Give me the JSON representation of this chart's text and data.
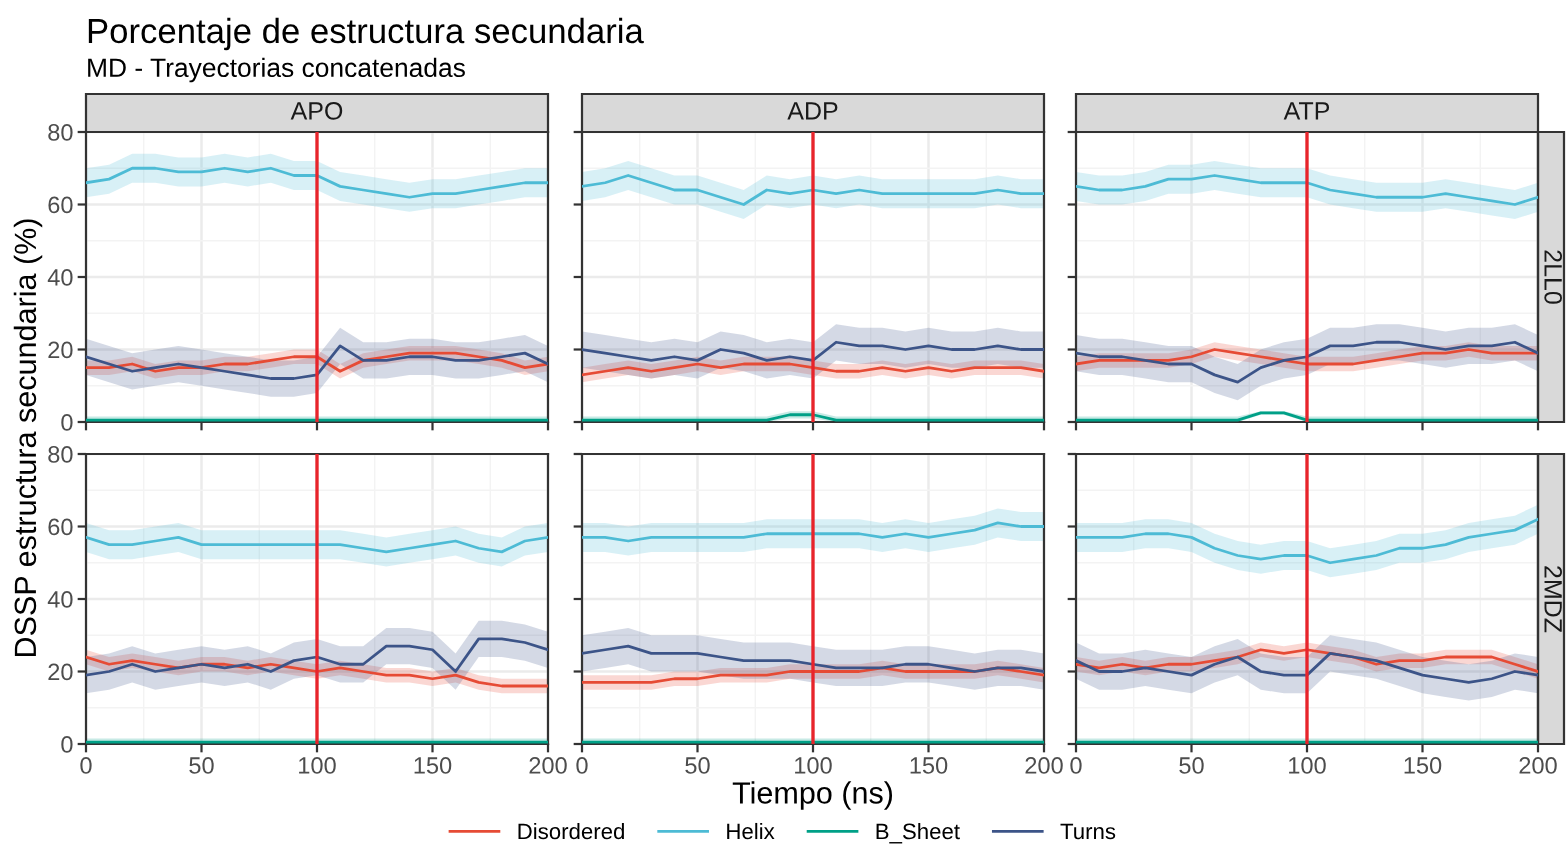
{
  "chart_data": [
    {
      "type": "line",
      "title": "Porcentaje de estructura secundaria",
      "subtitle": "MD - Trayectorias concatenadas",
      "x2label": "APO",
      "ylabel": "DSSP estructura secundaria (%)",
      "legend": "bottom",
      "xlim": [
        0,
        200
      ],
      "ylim": [
        0,
        80
      ],
      "xticks": [
        0,
        50,
        100,
        150,
        200
      ],
      "yticks": [
        0,
        20,
        40,
        60,
        80
      ],
      "grid": true,
      "tick_labels": "y",
      "ref_lines": [
        {
          "axis": "x",
          "value": 100,
          "color": "#e8242b"
        }
      ],
      "x": [
        0,
        10,
        20,
        30,
        40,
        50,
        60,
        70,
        80,
        90,
        100,
        110,
        120,
        130,
        140,
        150,
        160,
        170,
        180,
        190,
        200
      ],
      "series": [
        {
          "name": "Disordered",
          "color": "#e64b35",
          "values": [
            15,
            15,
            16,
            14,
            15,
            15,
            16,
            16,
            17,
            18,
            18,
            14,
            17,
            18,
            19,
            19,
            19,
            18,
            17,
            15,
            16
          ],
          "lower": [
            13,
            13,
            14,
            12,
            13,
            13,
            14,
            14,
            15,
            16,
            16,
            12,
            15,
            16,
            17,
            17,
            17,
            16,
            15,
            13,
            14
          ],
          "upper": [
            17,
            17,
            18,
            16,
            17,
            17,
            18,
            18,
            19,
            20,
            20,
            16,
            19,
            20,
            21,
            21,
            21,
            20,
            19,
            17,
            18
          ]
        },
        {
          "name": "Helix",
          "color": "#4dbbd5",
          "values": [
            66,
            67,
            70,
            70,
            69,
            69,
            70,
            69,
            70,
            68,
            68,
            65,
            64,
            63,
            62,
            63,
            63,
            64,
            65,
            66,
            66
          ],
          "lower": [
            62,
            63,
            66,
            66,
            65,
            65,
            66,
            65,
            66,
            64,
            64,
            61,
            60,
            59,
            58,
            59,
            59,
            60,
            61,
            62,
            62
          ],
          "upper": [
            70,
            71,
            74,
            74,
            73,
            73,
            74,
            73,
            74,
            72,
            72,
            69,
            68,
            67,
            66,
            67,
            67,
            68,
            69,
            70,
            70
          ]
        },
        {
          "name": "B_Sheet",
          "color": "#00a087",
          "values": [
            0.5,
            0.5,
            0.5,
            0.5,
            0.5,
            0.5,
            0.5,
            0.5,
            0.5,
            0.5,
            0.5,
            0.5,
            0.5,
            0.5,
            0.5,
            0.5,
            0.5,
            0.5,
            0.5,
            0.5,
            0.5
          ],
          "lower": [
            0,
            0,
            0,
            0,
            0,
            0,
            0,
            0,
            0,
            0,
            0,
            0,
            0,
            0,
            0,
            0,
            0,
            0,
            0,
            0,
            0
          ],
          "upper": [
            1.5,
            1.5,
            1.5,
            1.5,
            1.5,
            1.5,
            1.5,
            1.5,
            1.5,
            1.5,
            1.5,
            1.5,
            1.5,
            1.5,
            1.5,
            1.5,
            1.5,
            1.5,
            1.5,
            1.5,
            1.5
          ]
        },
        {
          "name": "Turns",
          "color": "#3c5488",
          "values": [
            18,
            16,
            14,
            15,
            16,
            15,
            14,
            13,
            12,
            12,
            13,
            21,
            17,
            17,
            18,
            18,
            17,
            17,
            18,
            19,
            16
          ],
          "lower": [
            13,
            11,
            9,
            10,
            11,
            10,
            9,
            8,
            7,
            7,
            8,
            16,
            12,
            12,
            13,
            13,
            12,
            12,
            13,
            14,
            11
          ],
          "upper": [
            23,
            21,
            19,
            20,
            21,
            20,
            19,
            18,
            17,
            17,
            18,
            26,
            22,
            22,
            23,
            23,
            22,
            22,
            23,
            24,
            21
          ]
        }
      ]
    },
    {
      "type": "line",
      "x2label": "ADP",
      "xlim": [
        0,
        200
      ],
      "ylim": [
        0,
        80
      ],
      "xticks": [
        0,
        50,
        100,
        150,
        200
      ],
      "yticks": [
        0,
        20,
        40,
        60,
        80
      ],
      "grid": true,
      "tick_labels": false,
      "ref_lines": [
        {
          "axis": "x",
          "value": 100,
          "color": "#e8242b"
        }
      ],
      "x": [
        0,
        10,
        20,
        30,
        40,
        50,
        60,
        70,
        80,
        90,
        100,
        110,
        120,
        130,
        140,
        150,
        160,
        170,
        180,
        190,
        200
      ],
      "series": [
        {
          "name": "Disordered",
          "color": "#e64b35",
          "values": [
            13,
            14,
            15,
            14,
            15,
            16,
            15,
            16,
            16,
            16,
            15,
            14,
            14,
            15,
            14,
            15,
            14,
            15,
            15,
            15,
            14
          ],
          "lower": [
            11,
            12,
            13,
            12,
            13,
            14,
            13,
            14,
            14,
            14,
            13,
            12,
            12,
            13,
            12,
            13,
            12,
            13,
            13,
            13,
            12
          ],
          "upper": [
            15,
            16,
            17,
            16,
            17,
            18,
            17,
            18,
            18,
            18,
            17,
            16,
            16,
            17,
            16,
            17,
            16,
            17,
            17,
            17,
            16
          ]
        },
        {
          "name": "Helix",
          "color": "#4dbbd5",
          "values": [
            65,
            66,
            68,
            66,
            64,
            64,
            62,
            60,
            64,
            63,
            64,
            63,
            64,
            63,
            63,
            63,
            63,
            63,
            64,
            63,
            63
          ],
          "lower": [
            61,
            62,
            64,
            62,
            60,
            60,
            58,
            56,
            60,
            59,
            60,
            59,
            60,
            59,
            59,
            59,
            59,
            59,
            60,
            59,
            59
          ],
          "upper": [
            69,
            70,
            72,
            70,
            68,
            68,
            66,
            64,
            68,
            67,
            68,
            67,
            68,
            67,
            67,
            67,
            67,
            67,
            68,
            67,
            67
          ]
        },
        {
          "name": "B_Sheet",
          "color": "#00a087",
          "values": [
            0.5,
            0.5,
            0.5,
            0.5,
            0.5,
            0.5,
            0.5,
            0.5,
            0.5,
            2,
            2,
            0.5,
            0.5,
            0.5,
            0.5,
            0.5,
            0.5,
            0.5,
            0.5,
            0.5,
            0.5
          ],
          "lower": [
            0,
            0,
            0,
            0,
            0,
            0,
            0,
            0,
            0,
            1,
            1,
            0,
            0,
            0,
            0,
            0,
            0,
            0,
            0,
            0,
            0
          ],
          "upper": [
            1.5,
            1.5,
            1.5,
            1.5,
            1.5,
            1.5,
            1.5,
            1.5,
            1.5,
            3,
            3,
            1.5,
            1.5,
            1.5,
            1.5,
            1.5,
            1.5,
            1.5,
            1.5,
            1.5,
            1.5
          ]
        },
        {
          "name": "Turns",
          "color": "#3c5488",
          "values": [
            20,
            19,
            18,
            17,
            18,
            17,
            20,
            19,
            17,
            18,
            17,
            22,
            21,
            21,
            20,
            21,
            20,
            20,
            21,
            20,
            20
          ],
          "lower": [
            15,
            14,
            13,
            12,
            13,
            12,
            15,
            14,
            12,
            13,
            12,
            17,
            16,
            16,
            15,
            16,
            15,
            15,
            16,
            15,
            15
          ],
          "upper": [
            25,
            24,
            23,
            22,
            23,
            22,
            25,
            24,
            22,
            23,
            22,
            27,
            26,
            26,
            25,
            26,
            25,
            25,
            26,
            25,
            25
          ]
        }
      ]
    },
    {
      "type": "line",
      "x2label": "ATP",
      "y2label": "2LL0",
      "xlim": [
        0,
        200
      ],
      "ylim": [
        0,
        80
      ],
      "xticks": [
        0,
        50,
        100,
        150,
        200
      ],
      "yticks": [
        0,
        20,
        40,
        60,
        80
      ],
      "grid": true,
      "tick_labels": false,
      "ref_lines": [
        {
          "axis": "x",
          "value": 100,
          "color": "#e8242b"
        }
      ],
      "x": [
        0,
        10,
        20,
        30,
        40,
        50,
        60,
        70,
        80,
        90,
        100,
        110,
        120,
        130,
        140,
        150,
        160,
        170,
        180,
        190,
        200
      ],
      "series": [
        {
          "name": "Disordered",
          "color": "#e64b35",
          "values": [
            16,
            17,
            17,
            17,
            17,
            18,
            20,
            19,
            18,
            17,
            16,
            16,
            16,
            17,
            18,
            19,
            19,
            20,
            19,
            19,
            19
          ],
          "lower": [
            14,
            15,
            15,
            15,
            15,
            16,
            18,
            17,
            16,
            15,
            14,
            14,
            14,
            15,
            16,
            17,
            17,
            18,
            17,
            17,
            17
          ],
          "upper": [
            18,
            19,
            19,
            19,
            19,
            20,
            22,
            21,
            20,
            19,
            18,
            18,
            18,
            19,
            20,
            21,
            21,
            22,
            21,
            21,
            21
          ]
        },
        {
          "name": "Helix",
          "color": "#4dbbd5",
          "values": [
            65,
            64,
            64,
            65,
            67,
            67,
            68,
            67,
            66,
            66,
            66,
            64,
            63,
            62,
            62,
            62,
            63,
            62,
            61,
            60,
            62
          ],
          "lower": [
            61,
            60,
            60,
            61,
            63,
            63,
            64,
            63,
            62,
            62,
            62,
            60,
            59,
            58,
            58,
            58,
            59,
            58,
            57,
            56,
            58
          ],
          "upper": [
            69,
            68,
            68,
            69,
            71,
            71,
            72,
            71,
            70,
            70,
            70,
            68,
            67,
            66,
            66,
            66,
            67,
            66,
            65,
            64,
            66
          ]
        },
        {
          "name": "B_Sheet",
          "color": "#00a087",
          "values": [
            0.5,
            0.5,
            0.5,
            0.5,
            0.5,
            0.5,
            0.5,
            0.5,
            2.5,
            2.5,
            0.5,
            0.5,
            0.5,
            0.5,
            0.5,
            0.5,
            0.5,
            0.5,
            0.5,
            0.5,
            0.5
          ],
          "lower": [
            0,
            0,
            0,
            0,
            0,
            0,
            0,
            0,
            2,
            2,
            0,
            0,
            0,
            0,
            0,
            0,
            0,
            0,
            0,
            0,
            0
          ],
          "upper": [
            1.5,
            1.5,
            1.5,
            1.5,
            1.5,
            1.5,
            1.5,
            1.5,
            3,
            3,
            1.5,
            1.5,
            1.5,
            1.5,
            1.5,
            1.5,
            1.5,
            1.5,
            1.5,
            1.5,
            1.5
          ]
        },
        {
          "name": "Turns",
          "color": "#3c5488",
          "values": [
            19,
            18,
            18,
            17,
            16,
            16,
            13,
            11,
            15,
            17,
            18,
            21,
            21,
            22,
            22,
            21,
            20,
            21,
            21,
            22,
            19
          ],
          "lower": [
            14,
            13,
            13,
            12,
            11,
            11,
            8,
            6,
            10,
            12,
            13,
            16,
            16,
            17,
            17,
            16,
            15,
            16,
            16,
            17,
            14
          ],
          "upper": [
            24,
            23,
            23,
            22,
            21,
            21,
            18,
            16,
            20,
            22,
            23,
            26,
            26,
            27,
            27,
            26,
            25,
            26,
            26,
            27,
            24
          ]
        }
      ]
    },
    {
      "type": "line",
      "xlim": [
        0,
        200
      ],
      "ylim": [
        0,
        80
      ],
      "xticks": [
        0,
        50,
        100,
        150,
        200
      ],
      "yticks": [
        0,
        20,
        40,
        60,
        80
      ],
      "grid": true,
      "ref_lines": [
        {
          "axis": "x",
          "value": 100,
          "color": "#e8242b"
        }
      ],
      "x": [
        0,
        10,
        20,
        30,
        40,
        50,
        60,
        70,
        80,
        90,
        100,
        110,
        120,
        130,
        140,
        150,
        160,
        170,
        180,
        190,
        200
      ],
      "series": [
        {
          "name": "Disordered",
          "color": "#e64b35",
          "values": [
            24,
            22,
            23,
            22,
            21,
            22,
            22,
            21,
            22,
            21,
            20,
            21,
            20,
            19,
            19,
            18,
            19,
            17,
            16,
            16,
            16
          ],
          "lower": [
            22,
            20,
            21,
            20,
            19,
            20,
            20,
            19,
            20,
            19,
            18,
            19,
            18,
            17,
            17,
            16,
            17,
            15,
            14,
            14,
            14
          ],
          "upper": [
            26,
            24,
            25,
            24,
            23,
            24,
            24,
            23,
            24,
            23,
            22,
            23,
            22,
            21,
            21,
            20,
            21,
            19,
            18,
            18,
            18
          ]
        },
        {
          "name": "Helix",
          "color": "#4dbbd5",
          "values": [
            57,
            55,
            55,
            56,
            57,
            55,
            55,
            55,
            55,
            55,
            55,
            55,
            54,
            53,
            54,
            55,
            56,
            54,
            53,
            56,
            57
          ],
          "lower": [
            53,
            51,
            51,
            52,
            53,
            51,
            51,
            51,
            51,
            51,
            51,
            51,
            50,
            49,
            50,
            51,
            52,
            50,
            49,
            52,
            53
          ],
          "upper": [
            61,
            59,
            59,
            60,
            61,
            59,
            59,
            59,
            59,
            59,
            59,
            59,
            58,
            57,
            58,
            59,
            60,
            58,
            57,
            60,
            61
          ]
        },
        {
          "name": "B_Sheet",
          "color": "#00a087",
          "values": [
            0.5,
            0.5,
            0.5,
            0.5,
            0.5,
            0.5,
            0.5,
            0.5,
            0.5,
            0.5,
            0.5,
            0.5,
            0.5,
            0.5,
            0.5,
            0.5,
            0.5,
            0.5,
            0.5,
            0.5,
            0.5
          ],
          "lower": [
            0,
            0,
            0,
            0,
            0,
            0,
            0,
            0,
            0,
            0,
            0,
            0,
            0,
            0,
            0,
            0,
            0,
            0,
            0,
            0,
            0
          ],
          "upper": [
            1.5,
            1.5,
            1.5,
            1.5,
            1.5,
            1.5,
            1.5,
            1.5,
            1.5,
            1.5,
            1.5,
            1.5,
            1.5,
            1.5,
            1.5,
            1.5,
            1.5,
            1.5,
            1.5,
            1.5,
            1.5
          ]
        },
        {
          "name": "Turns",
          "color": "#3c5488",
          "values": [
            19,
            20,
            22,
            20,
            21,
            22,
            21,
            22,
            20,
            23,
            24,
            22,
            22,
            27,
            27,
            26,
            20,
            29,
            29,
            28,
            26
          ],
          "lower": [
            14,
            15,
            17,
            15,
            16,
            17,
            16,
            17,
            15,
            18,
            19,
            17,
            17,
            22,
            22,
            21,
            15,
            24,
            24,
            23,
            21
          ],
          "upper": [
            24,
            25,
            27,
            25,
            26,
            27,
            26,
            27,
            25,
            28,
            29,
            27,
            27,
            32,
            32,
            31,
            25,
            34,
            34,
            33,
            31
          ]
        }
      ]
    },
    {
      "type": "line",
      "xlabel": "Tiempo (ns)",
      "xlim": [
        0,
        200
      ],
      "ylim": [
        0,
        80
      ],
      "xticks": [
        0,
        50,
        100,
        150,
        200
      ],
      "yticks": [
        0,
        20,
        40,
        60,
        80
      ],
      "grid": true,
      "tick_labels": "x",
      "ref_lines": [
        {
          "axis": "x",
          "value": 100,
          "color": "#e8242b"
        }
      ],
      "x": [
        0,
        10,
        20,
        30,
        40,
        50,
        60,
        70,
        80,
        90,
        100,
        110,
        120,
        130,
        140,
        150,
        160,
        170,
        180,
        190,
        200
      ],
      "series": [
        {
          "name": "Disordered",
          "color": "#e64b35",
          "values": [
            17,
            17,
            17,
            17,
            18,
            18,
            19,
            19,
            19,
            20,
            20,
            20,
            20,
            21,
            20,
            20,
            20,
            20,
            21,
            20,
            19
          ],
          "lower": [
            15,
            15,
            15,
            15,
            16,
            16,
            17,
            17,
            17,
            18,
            18,
            18,
            18,
            19,
            18,
            18,
            18,
            18,
            19,
            18,
            17
          ],
          "upper": [
            19,
            19,
            19,
            19,
            20,
            20,
            21,
            21,
            21,
            22,
            22,
            22,
            22,
            23,
            22,
            22,
            22,
            22,
            23,
            22,
            21
          ]
        },
        {
          "name": "Helix",
          "color": "#4dbbd5",
          "values": [
            57,
            57,
            56,
            57,
            57,
            57,
            57,
            57,
            58,
            58,
            58,
            58,
            58,
            57,
            58,
            57,
            58,
            59,
            61,
            60,
            60
          ],
          "lower": [
            53,
            53,
            52,
            53,
            53,
            53,
            53,
            53,
            54,
            54,
            54,
            54,
            54,
            53,
            54,
            53,
            54,
            55,
            57,
            56,
            56
          ],
          "upper": [
            61,
            61,
            60,
            61,
            61,
            61,
            61,
            61,
            62,
            62,
            62,
            62,
            62,
            61,
            62,
            61,
            62,
            63,
            65,
            64,
            64
          ]
        },
        {
          "name": "B_Sheet",
          "color": "#00a087",
          "values": [
            0.5,
            0.5,
            0.5,
            0.5,
            0.5,
            0.5,
            0.5,
            0.5,
            0.5,
            0.5,
            0.5,
            0.5,
            0.5,
            0.5,
            0.5,
            0.5,
            0.5,
            0.5,
            0.5,
            0.5,
            0.5
          ],
          "lower": [
            0,
            0,
            0,
            0,
            0,
            0,
            0,
            0,
            0,
            0,
            0,
            0,
            0,
            0,
            0,
            0,
            0,
            0,
            0,
            0,
            0
          ],
          "upper": [
            1.5,
            1.5,
            1.5,
            1.5,
            1.5,
            1.5,
            1.5,
            1.5,
            1.5,
            1.5,
            1.5,
            1.5,
            1.5,
            1.5,
            1.5,
            1.5,
            1.5,
            1.5,
            1.5,
            1.5,
            1.5
          ]
        },
        {
          "name": "Turns",
          "color": "#3c5488",
          "values": [
            25,
            26,
            27,
            25,
            25,
            25,
            24,
            23,
            23,
            23,
            22,
            21,
            21,
            21,
            22,
            22,
            21,
            20,
            21,
            21,
            20
          ],
          "lower": [
            20,
            21,
            22,
            20,
            20,
            20,
            19,
            18,
            18,
            18,
            17,
            16,
            16,
            16,
            17,
            17,
            16,
            15,
            16,
            16,
            15
          ],
          "upper": [
            30,
            31,
            32,
            30,
            30,
            30,
            29,
            28,
            28,
            28,
            27,
            26,
            26,
            26,
            27,
            27,
            26,
            25,
            26,
            26,
            25
          ]
        }
      ]
    },
    {
      "type": "line",
      "y2label": "2MDZ",
      "xlim": [
        0,
        200
      ],
      "ylim": [
        0,
        80
      ],
      "xticks": [
        0,
        50,
        100,
        150,
        200
      ],
      "yticks": [
        0,
        20,
        40,
        60,
        80
      ],
      "grid": true,
      "tick_labels": "x",
      "ref_lines": [
        {
          "axis": "x",
          "value": 100,
          "color": "#e8242b"
        }
      ],
      "x": [
        0,
        10,
        20,
        30,
        40,
        50,
        60,
        70,
        80,
        90,
        100,
        110,
        120,
        130,
        140,
        150,
        160,
        170,
        180,
        190,
        200
      ],
      "series": [
        {
          "name": "Disordered",
          "color": "#e64b35",
          "values": [
            22,
            21,
            22,
            21,
            22,
            22,
            23,
            24,
            26,
            25,
            26,
            25,
            24,
            22,
            23,
            23,
            24,
            24,
            24,
            22,
            20
          ],
          "lower": [
            20,
            19,
            20,
            19,
            20,
            20,
            21,
            22,
            24,
            23,
            24,
            23,
            22,
            20,
            21,
            21,
            22,
            22,
            22,
            20,
            18
          ],
          "upper": [
            24,
            23,
            24,
            23,
            24,
            24,
            25,
            26,
            28,
            27,
            28,
            27,
            26,
            24,
            25,
            25,
            26,
            26,
            26,
            24,
            22
          ]
        },
        {
          "name": "Helix",
          "color": "#4dbbd5",
          "values": [
            57,
            57,
            57,
            58,
            58,
            57,
            54,
            52,
            51,
            52,
            52,
            50,
            51,
            52,
            54,
            54,
            55,
            57,
            58,
            59,
            62
          ],
          "lower": [
            53,
            53,
            53,
            54,
            54,
            53,
            50,
            48,
            47,
            48,
            48,
            46,
            47,
            48,
            50,
            50,
            51,
            53,
            54,
            55,
            58
          ],
          "upper": [
            61,
            61,
            61,
            62,
            62,
            61,
            58,
            56,
            55,
            56,
            56,
            54,
            55,
            56,
            58,
            58,
            59,
            61,
            62,
            63,
            66
          ]
        },
        {
          "name": "B_Sheet",
          "color": "#00a087",
          "values": [
            0.5,
            0.5,
            0.5,
            0.5,
            0.5,
            0.5,
            0.5,
            0.5,
            0.5,
            0.5,
            0.5,
            0.5,
            0.5,
            0.5,
            0.5,
            0.5,
            0.5,
            0.5,
            0.5,
            0.5,
            0.5
          ],
          "lower": [
            0,
            0,
            0,
            0,
            0,
            0,
            0,
            0,
            0,
            0,
            0,
            0,
            0,
            0,
            0,
            0,
            0,
            0,
            0,
            0,
            0
          ],
          "upper": [
            1.5,
            1.5,
            1.5,
            1.5,
            1.5,
            1.5,
            1.5,
            1.5,
            1.5,
            1.5,
            1.5,
            1.5,
            1.5,
            1.5,
            1.5,
            1.5,
            1.5,
            1.5,
            1.5,
            1.5,
            1.5
          ]
        },
        {
          "name": "Turns",
          "color": "#3c5488",
          "values": [
            23,
            20,
            20,
            21,
            20,
            19,
            22,
            24,
            20,
            19,
            19,
            25,
            24,
            23,
            21,
            19,
            18,
            17,
            18,
            20,
            19
          ],
          "lower": [
            18,
            15,
            15,
            16,
            15,
            14,
            17,
            19,
            15,
            14,
            14,
            20,
            19,
            18,
            16,
            14,
            13,
            12,
            13,
            15,
            14
          ],
          "upper": [
            28,
            25,
            25,
            26,
            25,
            24,
            27,
            29,
            25,
            24,
            24,
            30,
            29,
            28,
            26,
            24,
            23,
            22,
            23,
            25,
            24
          ]
        }
      ]
    }
  ]
}
